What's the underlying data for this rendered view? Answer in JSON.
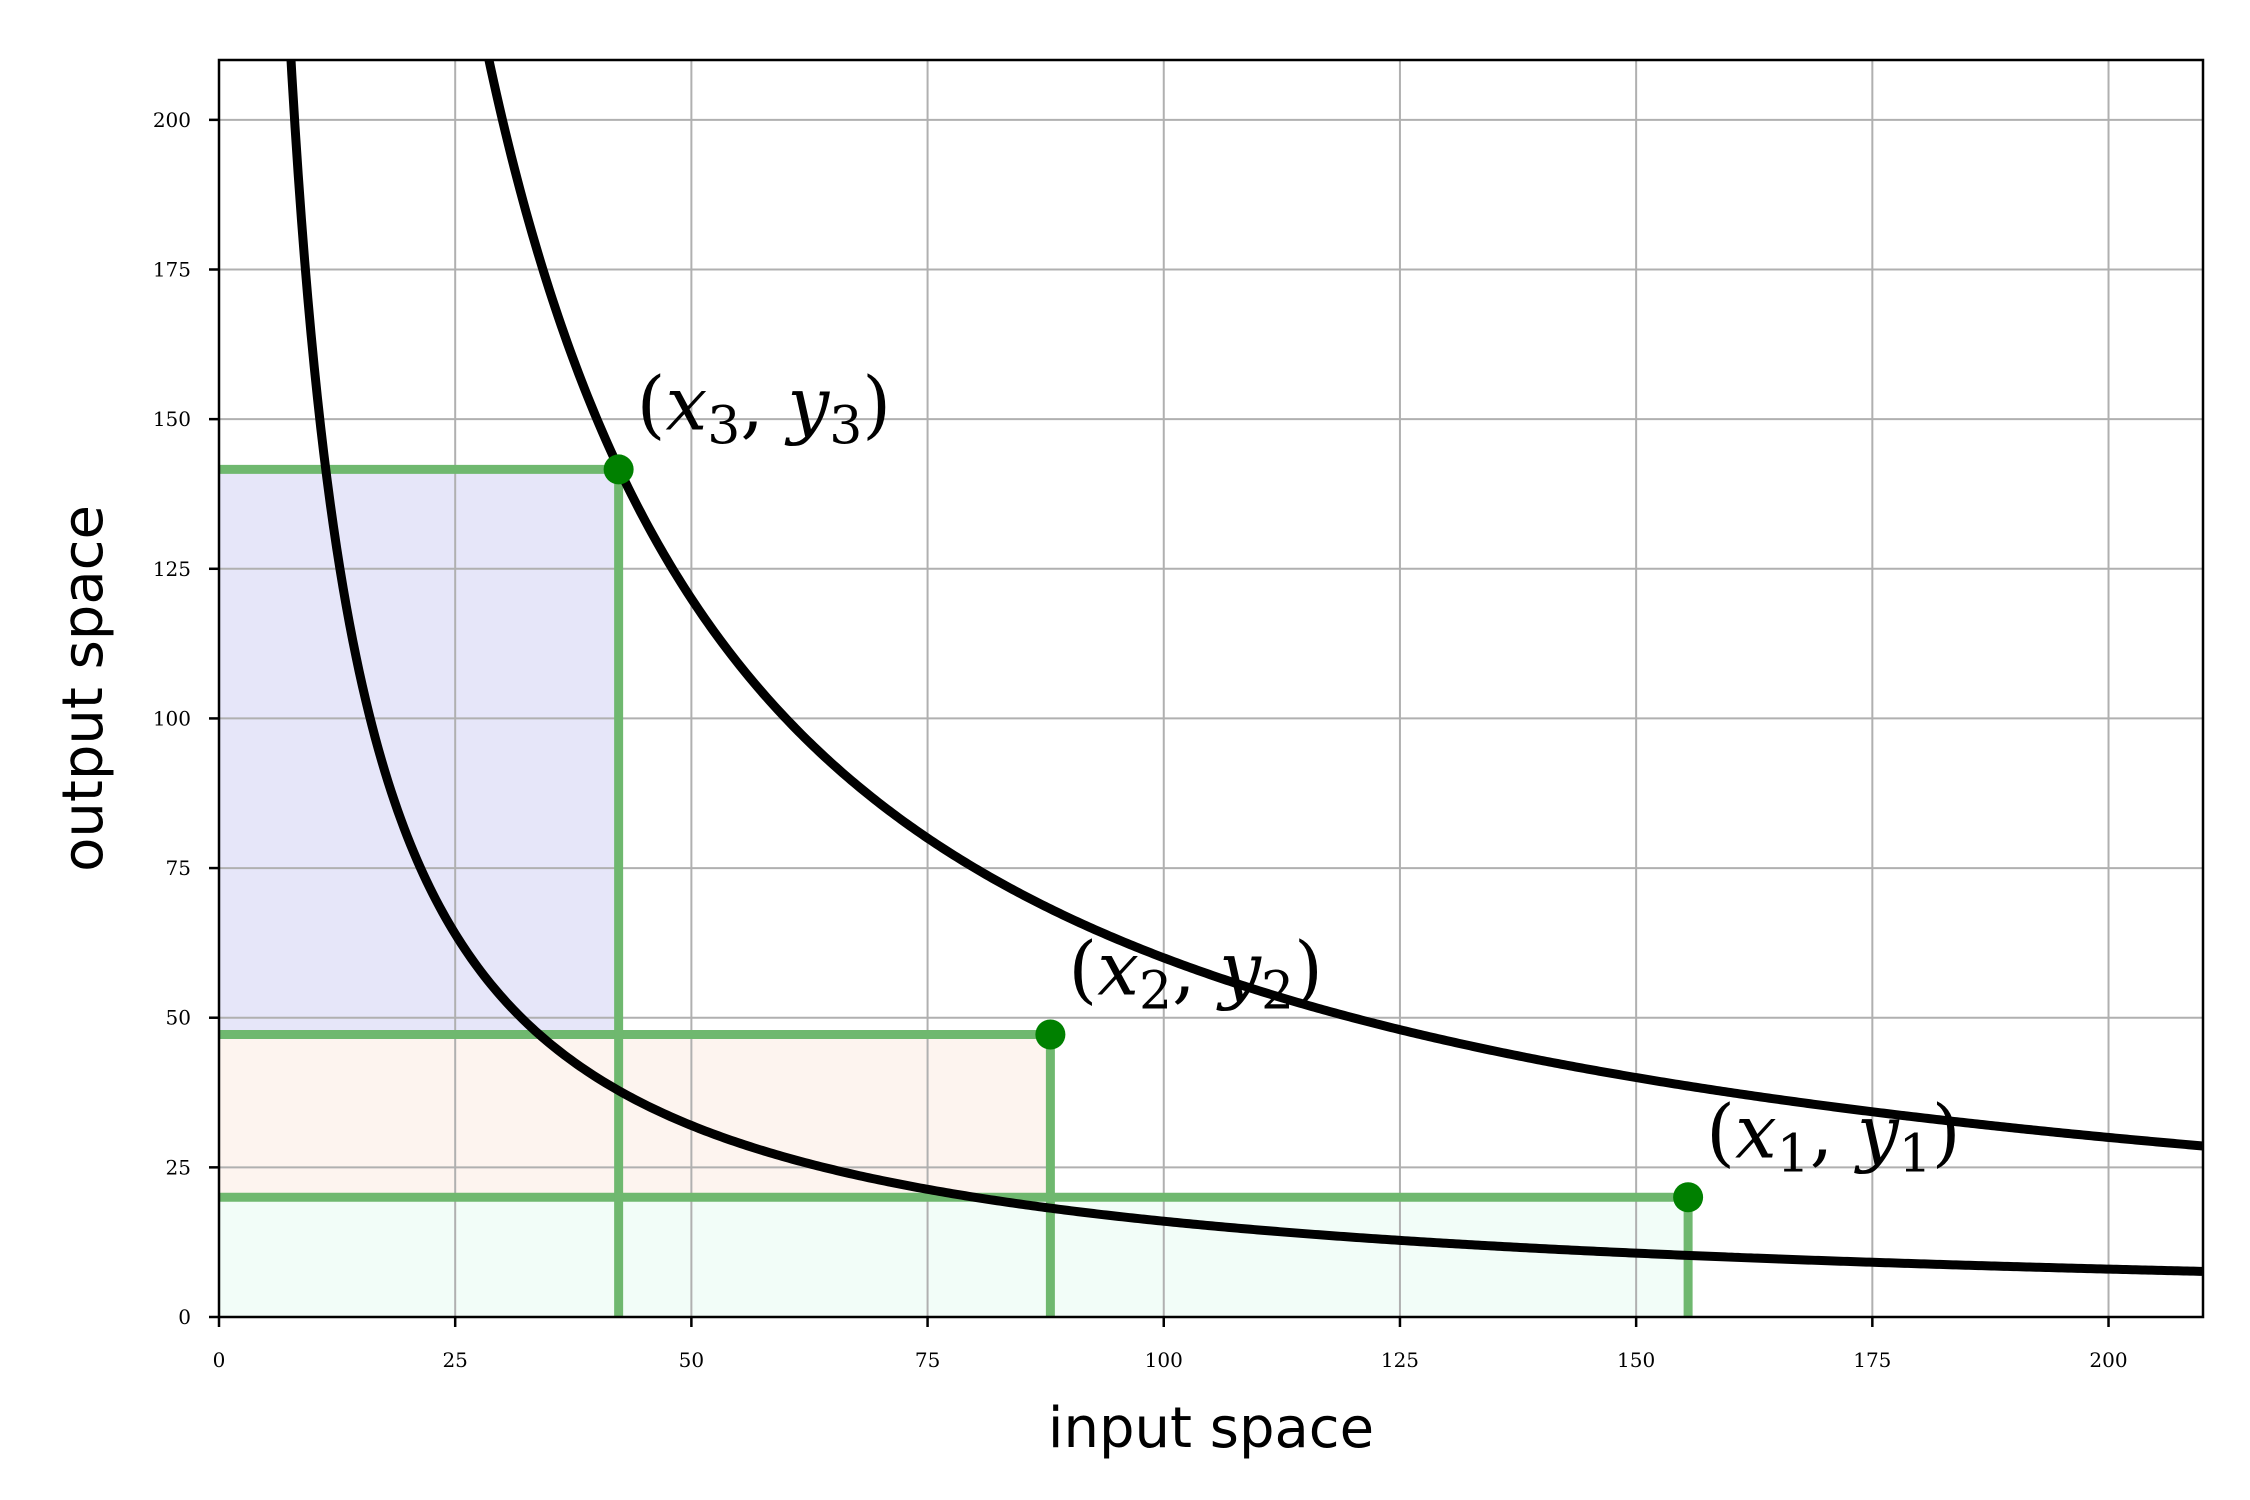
{
  "chart_data": {
    "type": "line",
    "title": "",
    "xlabel": "input space",
    "ylabel": "output space",
    "xlim": [
      0,
      210
    ],
    "ylim": [
      0,
      210
    ],
    "grid": true,
    "x_ticks": [
      0,
      25,
      50,
      75,
      100,
      125,
      150,
      175,
      200
    ],
    "y_ticks": [
      0,
      25,
      50,
      75,
      100,
      125,
      150,
      175,
      200
    ],
    "x_tick_labels": [
      "0",
      "25",
      "50",
      "75",
      "100",
      "125",
      "150",
      "175",
      "200"
    ],
    "y_tick_labels": [
      "0",
      "25",
      "50",
      "75",
      "100",
      "125",
      "150",
      "175",
      "200"
    ],
    "curves": [
      {
        "function": "y = k / x",
        "k": 1600,
        "color": "#000000"
      },
      {
        "function": "y = k / x",
        "k": 6000,
        "color": "#000000"
      }
    ],
    "points": [
      {
        "var": "x",
        "sub": "1",
        "var2": "y",
        "sub2": "1",
        "x": 155.5,
        "y": 20.0,
        "color": "#008000"
      },
      {
        "var": "x",
        "sub": "2",
        "var2": "y",
        "sub2": "2",
        "x": 88.0,
        "y": 47.2,
        "color": "#008000"
      },
      {
        "var": "x",
        "sub": "3",
        "var2": "y",
        "sub2": "3",
        "x": 42.3,
        "y": 141.6,
        "color": "#008000"
      }
    ],
    "regions": [
      {
        "x": [
          0,
          155.5
        ],
        "y": [
          0,
          20.0
        ],
        "fill": "#f2fdf8"
      },
      {
        "x": [
          0,
          88.0
        ],
        "y": [
          20.0,
          47.2
        ],
        "fill": "#fdf4ef"
      },
      {
        "x": [
          0,
          42.3
        ],
        "y": [
          47.2,
          141.6
        ],
        "fill": "#e6e6f9"
      }
    ],
    "guide_line_color": "#6fb86f",
    "grid_color": "#b0b0b0"
  }
}
